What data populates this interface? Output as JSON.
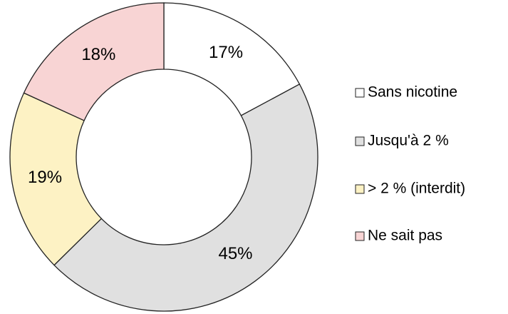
{
  "chart_data": {
    "type": "donut",
    "categories": [
      "Sans nicotine",
      "Jusqu'à 2 %",
      "> 2 % (interdit)",
      "Ne sait pas"
    ],
    "values": [
      17,
      45,
      19,
      18
    ],
    "value_labels": [
      "17%",
      "45%",
      "19%",
      "18%"
    ],
    "colors": [
      "#ffffff",
      "#e0e0e0",
      "#fdf2c4",
      "#f8d4d4"
    ],
    "legend": "right"
  }
}
